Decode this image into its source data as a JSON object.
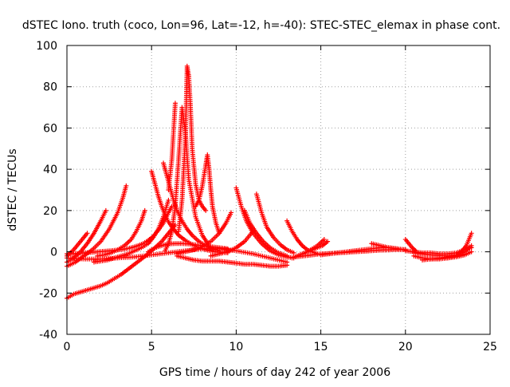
{
  "chart_data": {
    "type": "scatter",
    "title": "dSTEC Iono. truth (coco, Lon=96, Lat=-12, h=-40): STEC-STEC_elemax in phase cont.",
    "xlabel": "GPS time / hours of day 242 of year 2006",
    "ylabel": "dSTEC  / TECUs",
    "xlim": [
      0,
      25
    ],
    "ylim": [
      -40,
      100
    ],
    "x_ticks": [
      0,
      5,
      10,
      15,
      20,
      25
    ],
    "y_ticks": [
      -40,
      -20,
      0,
      20,
      40,
      60,
      80,
      100
    ],
    "x_tick_labels": [
      "0",
      "5",
      "10",
      "15",
      "20",
      "25"
    ],
    "y_tick_labels": [
      "-40",
      "-20",
      "0",
      "20",
      "40",
      "60",
      "80",
      "100"
    ],
    "grid": true,
    "marker": "plus",
    "marker_color": "#ff0000",
    "series": [
      {
        "x": [
          0,
          0.4,
          0.8,
          1.2,
          1.6,
          2.0,
          2.4,
          2.8,
          3.2,
          3.6,
          4.0,
          4.4,
          4.8,
          5.2,
          5.6,
          6.0,
          6.2,
          6.4
        ],
        "y": [
          -22.5,
          -20.5,
          -19.5,
          -18.5,
          -17.5,
          -16.5,
          -15,
          -13,
          -11,
          -8.5,
          -6,
          -3.5,
          -1,
          2,
          5,
          9,
          11,
          13
        ]
      },
      {
        "x": [
          0,
          0.3,
          0.6,
          0.9,
          1.2,
          1.5,
          1.8,
          2.1,
          2.4,
          2.7,
          3.0,
          3.3,
          3.6,
          3.9,
          4.2,
          4.5,
          4.8,
          5.1,
          5.4,
          5.7,
          6.0,
          6.2
        ],
        "y": [
          -1,
          -1,
          -0.8,
          -0.6,
          -0.4,
          -0.2,
          0,
          0.2,
          0.4,
          0.6,
          0.9,
          1.2,
          1.6,
          2.2,
          3,
          4,
          5.5,
          7.5,
          10.5,
          14,
          19,
          22
        ]
      },
      {
        "x": [
          0,
          0.4,
          0.8,
          1.2
        ],
        "y": [
          -2,
          1,
          5,
          9
        ]
      },
      {
        "x": [
          0,
          0.4,
          0.8,
          1.2,
          1.6,
          2.0,
          2.3
        ],
        "y": [
          -5,
          -3,
          0,
          4,
          9,
          15,
          20
        ]
      },
      {
        "x": [
          0,
          0.5,
          1.0,
          1.5,
          2.0,
          2.5,
          3.0,
          3.3,
          3.5
        ],
        "y": [
          -7,
          -5,
          -2,
          1,
          5,
          11,
          19,
          26,
          32
        ]
      },
      {
        "x": [
          1.8,
          2.2,
          2.6,
          3.0,
          3.4,
          3.8,
          4.1,
          4.4,
          4.6
        ],
        "y": [
          -2,
          -1.5,
          -0.5,
          1,
          3,
          6,
          10,
          15,
          20
        ]
      },
      {
        "x": [
          1.6,
          2.0,
          2.4,
          2.8,
          3.2,
          3.6,
          4.0,
          4.4,
          4.8,
          5.1,
          5.4,
          5.7,
          6.0
        ],
        "y": [
          -5,
          -4.5,
          -4,
          -3,
          -2,
          -1,
          0.5,
          2,
          4,
          7,
          11,
          17,
          25
        ]
      },
      {
        "x": [
          4.8,
          5.0,
          5.2,
          5.4,
          5.6,
          5.8,
          6.0,
          6.4,
          6.8,
          7.2,
          7.6,
          8.0,
          8.5,
          9.0,
          9.5
        ],
        "y": [
          0,
          1,
          1.8,
          2.5,
          3,
          3.5,
          3.8,
          4,
          4,
          3.8,
          3.4,
          3,
          2.5,
          2,
          1.5
        ]
      },
      {
        "x": [
          5.0,
          5.2,
          5.4,
          5.6,
          5.8,
          6.0,
          6.3,
          6.6,
          7.0,
          7.4,
          7.8,
          8.2,
          8.6,
          9.0,
          9.5
        ],
        "y": [
          39,
          33,
          27,
          22,
          18,
          14.5,
          11,
          8,
          5.5,
          3.5,
          2,
          1,
          0.2,
          -0.2,
          -0.5
        ]
      },
      {
        "x": [
          5.7,
          5.9,
          6.1,
          6.3,
          6.5,
          6.8,
          7.1,
          7.4,
          7.8,
          8.2,
          8.6,
          9.0
        ],
        "y": [
          43,
          37,
          31,
          25,
          20,
          15,
          11,
          8,
          5,
          3,
          1.5,
          0.5
        ]
      },
      {
        "x": [
          5.8,
          6.0,
          6.2,
          6.4,
          6.6,
          6.8,
          7.0,
          7.2,
          7.6,
          8.0,
          8.4
        ],
        "y": [
          0.5,
          4,
          10,
          22,
          45,
          70,
          58,
          35,
          17,
          8,
          3
        ]
      },
      {
        "x": [
          6.0,
          6.2,
          6.4
        ],
        "y": [
          30,
          45,
          72
        ]
      },
      {
        "x": [
          6.6,
          6.8,
          7.0,
          7.1,
          7.2,
          7.3,
          7.4,
          7.6,
          7.8,
          8.0,
          8.2
        ],
        "y": [
          10,
          25,
          55,
          90,
          85,
          70,
          50,
          33,
          25,
          22,
          20
        ]
      },
      {
        "x": [
          7.6,
          7.8,
          8.0,
          8.2,
          8.3,
          8.4,
          8.5,
          8.6,
          8.8,
          9.0
        ],
        "y": [
          22,
          25,
          32,
          42,
          47,
          40,
          30,
          22,
          14,
          9
        ]
      },
      {
        "x": [
          6.5,
          7.0,
          7.5,
          8.0,
          8.5,
          9.0,
          9.4,
          9.7
        ],
        "y": [
          -1,
          0,
          1,
          2.5,
          5,
          9,
          14,
          19
        ]
      },
      {
        "x": [
          8.5,
          9.0,
          9.5,
          10.0,
          10.5,
          11.0
        ],
        "y": [
          -2,
          -1,
          0,
          2,
          5,
          10
        ]
      },
      {
        "x": [
          10.0,
          10.3,
          10.6,
          11.0,
          11.5,
          12.0,
          12.5,
          13.0,
          13.4
        ],
        "y": [
          31,
          22,
          15,
          9,
          4,
          0.5,
          -1.5,
          -2.5,
          -3
        ]
      },
      {
        "x": [
          10.5,
          10.8,
          11.2,
          11.6,
          12.0,
          12.5,
          13.0
        ],
        "y": [
          20,
          14,
          9,
          5,
          2,
          -0.5,
          -2
        ]
      },
      {
        "x": [
          11.2,
          11.5,
          11.8,
          12.2,
          12.6,
          13.0,
          13.4
        ],
        "y": [
          28,
          19,
          12,
          7,
          3.5,
          1,
          -0.5
        ]
      },
      {
        "x": [
          0,
          1,
          2,
          3,
          4,
          5,
          6,
          7,
          8,
          9,
          10,
          11,
          12,
          13
        ],
        "y": [
          -3,
          -3.5,
          -3.5,
          -3,
          -2.5,
          -1.5,
          -0.5,
          0.5,
          1.5,
          1.5,
          0.5,
          -1,
          -3,
          -5
        ]
      },
      {
        "x": [
          6.5,
          7.0,
          7.5,
          8.0,
          8.5,
          9.0,
          9.5,
          10.0,
          10.5,
          11.0,
          11.5,
          12.0,
          12.5,
          13.0
        ],
        "y": [
          -2,
          -3,
          -4,
          -4.5,
          -4.5,
          -4.5,
          -5,
          -5.5,
          -6,
          -6,
          -6.5,
          -7,
          -7,
          -6.5
        ]
      },
      {
        "x": [
          13.0,
          13.3,
          13.6,
          13.9,
          14.2,
          14.5,
          14.8
        ],
        "y": [
          15,
          10,
          6,
          3,
          1,
          0,
          -1
        ]
      },
      {
        "x": [
          13.5,
          14.0,
          14.5,
          15.0,
          15.5,
          16.0,
          16.5,
          17.0,
          17.5,
          18.0,
          18.5,
          19.0,
          19.5,
          20.0
        ],
        "y": [
          -2.5,
          -2,
          -1.5,
          -1,
          -0.8,
          -0.5,
          -0.3,
          0,
          0.2,
          0.5,
          0.8,
          0.9,
          1.1,
          1
        ]
      },
      {
        "x": [
          13.3,
          13.6,
          13.9,
          14.2,
          14.5,
          14.8,
          15.1,
          15.4
        ],
        "y": [
          -3,
          -2,
          -1,
          0,
          1,
          2,
          3,
          5
        ]
      },
      {
        "x": [
          14.0,
          14.4,
          14.8,
          15.2
        ],
        "y": [
          -1,
          1,
          3,
          6
        ]
      },
      {
        "x": [
          15.0,
          15.5,
          16.0,
          16.5,
          17.0,
          17.5,
          18.0,
          18.5,
          19.0,
          19.5,
          20.0
        ],
        "y": [
          -1.5,
          -1,
          -0.5,
          0,
          0.5,
          1,
          1.5,
          2,
          2,
          1.5,
          1
        ]
      },
      {
        "x": [
          18.0,
          18.5,
          19.0,
          19.5
        ],
        "y": [
          4,
          3,
          2,
          1.5
        ]
      },
      {
        "x": [
          20.0,
          20.2,
          20.4,
          20.6
        ],
        "y": [
          6,
          4,
          2,
          0.5
        ]
      },
      {
        "x": [
          20.5,
          21.0,
          21.5,
          22.0,
          22.5,
          23.0,
          23.5,
          23.9
        ],
        "y": [
          -2,
          -3,
          -3.5,
          -3.5,
          -3,
          -2.5,
          -1.5,
          0
        ]
      },
      {
        "x": [
          20.5,
          21.0,
          21.5,
          22.0,
          22.5,
          23.0,
          23.5,
          23.9
        ],
        "y": [
          -0.5,
          -1,
          -1.5,
          -1.8,
          -2,
          -1.5,
          0,
          3
        ]
      },
      {
        "x": [
          20.0,
          20.5,
          21.0,
          21.5,
          22.0,
          22.5,
          23.0,
          23.5,
          23.9
        ],
        "y": [
          0.5,
          0,
          -0.5,
          -0.5,
          -1,
          -1,
          -0.5,
          1,
          2
        ]
      },
      {
        "x": [
          22.5,
          23.0,
          23.3,
          23.6,
          23.9
        ],
        "y": [
          -3,
          -2,
          0,
          3,
          9
        ]
      },
      {
        "x": [
          21.0,
          21.5,
          22.0,
          22.5,
          23.0,
          23.5
        ],
        "y": [
          -4,
          -3.5,
          -3,
          -2.5,
          -2,
          -1
        ]
      }
    ]
  }
}
